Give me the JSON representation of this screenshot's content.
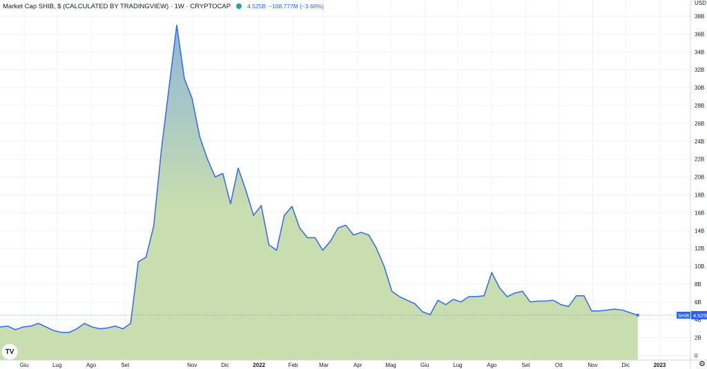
{
  "legend": {
    "title": "Market Cap SHIB, $ (CALCULATED BY TRADINGVIEW) · 1W · CRYPTOCAP",
    "status_color": "#26a69a",
    "last_value": "4.525B",
    "change": "−168.777M (−3.60%)"
  },
  "icons": {
    "logo": "tradingview-logo-icon",
    "settings": "gear-icon"
  },
  "colors": {
    "line": "#3a6ee8",
    "area_top": "#8eb6d8",
    "area_bottom": "#c9deae",
    "price_label_bg": "#2962ff",
    "last_price_line": "#2962ff"
  },
  "chart_data": {
    "type": "area",
    "title": "Market Cap SHIB, $ (CALCULATED BY TRADINGVIEW) · 1W · CRYPTOCAP",
    "ylabel": "USD",
    "ylim": [
      -0.5,
      39.2
    ],
    "y_unit": "B",
    "y_ticks": [
      "0",
      "2B",
      "4B",
      "6B",
      "8B",
      "10B",
      "12B",
      "14B",
      "16B",
      "18B",
      "20B",
      "22B",
      "24B",
      "26B",
      "28B",
      "30B",
      "32B",
      "34B",
      "36B",
      "38B"
    ],
    "y_tick_values": [
      0,
      2,
      4,
      6,
      8,
      10,
      12,
      14,
      16,
      18,
      20,
      22,
      24,
      26,
      28,
      30,
      32,
      34,
      36,
      38
    ],
    "x_ticks": [
      {
        "label": "Giu",
        "date": "2021-06-01"
      },
      {
        "label": "Lug",
        "date": "2021-07-01"
      },
      {
        "label": "Ago",
        "date": "2021-08-01"
      },
      {
        "label": "Set",
        "date": "2021-09-01"
      },
      {
        "label": "Nov",
        "date": "2021-11-01"
      },
      {
        "label": "Dic",
        "date": "2021-12-01"
      },
      {
        "label": "2022",
        "date": "2022-01-01",
        "bold": true
      },
      {
        "label": "Feb",
        "date": "2022-02-01"
      },
      {
        "label": "Mar",
        "date": "2022-03-01"
      },
      {
        "label": "Apr",
        "date": "2022-04-01"
      },
      {
        "label": "Mag",
        "date": "2022-05-01"
      },
      {
        "label": "Giu",
        "date": "2022-06-01"
      },
      {
        "label": "Lug",
        "date": "2022-07-01"
      },
      {
        "label": "Ago",
        "date": "2022-08-01"
      },
      {
        "label": "Set",
        "date": "2022-09-01"
      },
      {
        "label": "Ott",
        "date": "2022-10-01"
      },
      {
        "label": "Nov",
        "date": "2022-11-01"
      },
      {
        "label": "Dic",
        "date": "2022-12-01"
      },
      {
        "label": "2023",
        "date": "2023-01-01",
        "bold": true
      }
    ],
    "x_range": [
      "2021-05-10",
      "2023-01-29"
    ],
    "last_value_label": "4.525B",
    "series": [
      {
        "name": "SHIB",
        "points": [
          [
            "2021-05-10",
            3.2
          ],
          [
            "2021-05-17",
            3.3
          ],
          [
            "2021-05-24",
            2.9
          ],
          [
            "2021-05-31",
            3.2
          ],
          [
            "2021-06-07",
            3.3
          ],
          [
            "2021-06-14",
            3.6
          ],
          [
            "2021-06-21",
            3.2
          ],
          [
            "2021-06-28",
            2.8
          ],
          [
            "2021-07-05",
            2.6
          ],
          [
            "2021-07-12",
            2.6
          ],
          [
            "2021-07-19",
            3.0
          ],
          [
            "2021-07-26",
            3.6
          ],
          [
            "2021-08-02",
            3.2
          ],
          [
            "2021-08-09",
            3.0
          ],
          [
            "2021-08-16",
            3.1
          ],
          [
            "2021-08-23",
            3.3
          ],
          [
            "2021-08-30",
            3.0
          ],
          [
            "2021-09-06",
            3.6
          ],
          [
            "2021-09-13",
            10.5
          ],
          [
            "2021-09-20",
            11.0
          ],
          [
            "2021-09-27",
            14.5
          ],
          [
            "2021-10-04",
            23.0
          ],
          [
            "2021-10-11",
            30.0
          ],
          [
            "2021-10-18",
            37.0
          ],
          [
            "2021-10-25",
            31.0
          ],
          [
            "2021-11-01",
            28.8
          ],
          [
            "2021-11-08",
            24.5
          ],
          [
            "2021-11-15",
            22.0
          ],
          [
            "2021-11-22",
            20.0
          ],
          [
            "2021-11-29",
            20.4
          ],
          [
            "2021-12-06",
            17.0
          ],
          [
            "2021-12-13",
            21.0
          ],
          [
            "2021-12-20",
            18.5
          ],
          [
            "2021-12-27",
            15.7
          ],
          [
            "2022-01-03",
            16.8
          ],
          [
            "2022-01-10",
            12.4
          ],
          [
            "2022-01-17",
            11.8
          ],
          [
            "2022-01-24",
            15.7
          ],
          [
            "2022-01-31",
            16.7
          ],
          [
            "2022-02-07",
            14.3
          ],
          [
            "2022-02-14",
            13.2
          ],
          [
            "2022-02-21",
            13.2
          ],
          [
            "2022-02-28",
            11.8
          ],
          [
            "2022-03-07",
            12.8
          ],
          [
            "2022-03-14",
            14.3
          ],
          [
            "2022-03-21",
            14.6
          ],
          [
            "2022-03-28",
            13.5
          ],
          [
            "2022-04-04",
            13.8
          ],
          [
            "2022-04-11",
            13.5
          ],
          [
            "2022-04-18",
            12.0
          ],
          [
            "2022-04-25",
            10.0
          ],
          [
            "2022-05-02",
            7.2
          ],
          [
            "2022-05-09",
            6.6
          ],
          [
            "2022-05-16",
            6.2
          ],
          [
            "2022-05-23",
            5.8
          ],
          [
            "2022-05-30",
            4.9
          ],
          [
            "2022-06-06",
            4.6
          ],
          [
            "2022-06-13",
            6.2
          ],
          [
            "2022-06-20",
            5.7
          ],
          [
            "2022-06-27",
            6.3
          ],
          [
            "2022-07-04",
            6.0
          ],
          [
            "2022-07-11",
            6.6
          ],
          [
            "2022-07-18",
            6.6
          ],
          [
            "2022-07-25",
            6.7
          ],
          [
            "2022-08-01",
            9.3
          ],
          [
            "2022-08-08",
            7.6
          ],
          [
            "2022-08-15",
            6.6
          ],
          [
            "2022-08-22",
            7.0
          ],
          [
            "2022-08-29",
            7.2
          ],
          [
            "2022-09-05",
            6.0
          ],
          [
            "2022-09-12",
            6.1
          ],
          [
            "2022-09-19",
            6.1
          ],
          [
            "2022-09-26",
            6.2
          ],
          [
            "2022-10-03",
            5.7
          ],
          [
            "2022-10-10",
            5.5
          ],
          [
            "2022-10-17",
            6.7
          ],
          [
            "2022-10-24",
            6.7
          ],
          [
            "2022-10-31",
            5.0
          ],
          [
            "2022-11-07",
            5.0
          ],
          [
            "2022-11-14",
            5.1
          ],
          [
            "2022-11-21",
            5.2
          ],
          [
            "2022-11-28",
            5.1
          ],
          [
            "2022-12-05",
            4.8
          ],
          [
            "2022-12-12",
            4.525
          ]
        ]
      }
    ],
    "grid": true,
    "legend_position": "top-left"
  }
}
